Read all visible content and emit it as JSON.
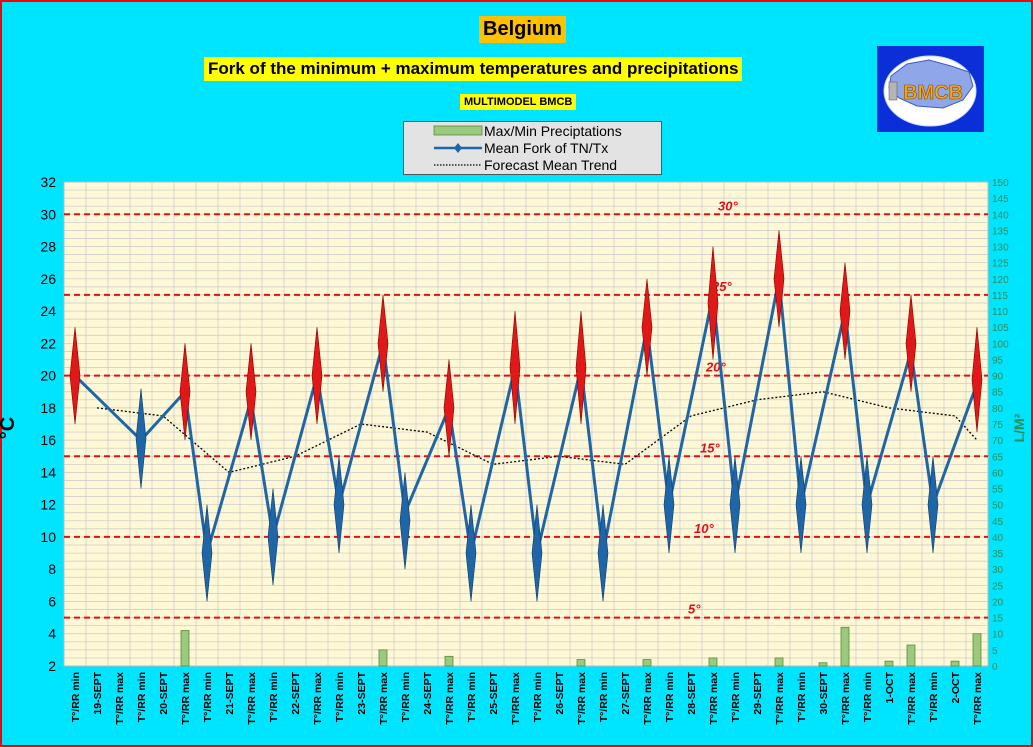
{
  "title": "Belgium",
  "subtitle": "Fork of the minimum + maximum temperatures and precipitations",
  "model_label": "MULTIMODEL BMCB",
  "logo_text": "BMCB",
  "legend": {
    "precip": "Max/Min Preciptations",
    "mean": "Mean Fork of TN/Tx",
    "trend": "Forecast Mean Trend"
  },
  "colors": {
    "border": "#ff0000",
    "background": "#00e5ff",
    "plot_bg": "#fff8d6",
    "mean_line": "#1f66a8",
    "trend_line": "#000000",
    "precip_bar": "#9bc97d",
    "ref_line": "#e0101a",
    "y2_label": "#2e8b57"
  },
  "chart_data": {
    "type": "line",
    "xlabel": "",
    "ylabel": "°C",
    "y2label": "L/M²",
    "ylim": [
      2,
      32
    ],
    "y_ticks": [
      2,
      4,
      6,
      8,
      10,
      12,
      14,
      16,
      18,
      20,
      22,
      24,
      26,
      28,
      30,
      32
    ],
    "y2lim": [
      0,
      150
    ],
    "y2_ticks": [
      0,
      5,
      10,
      15,
      20,
      25,
      30,
      35,
      40,
      45,
      50,
      55,
      60,
      65,
      70,
      75,
      80,
      85,
      90,
      95,
      100,
      105,
      110,
      115,
      120,
      125,
      130,
      135,
      140,
      145,
      150
    ],
    "grid": true,
    "legend_position": "top-center",
    "categories": [
      "T°/RR min",
      "19-SEPT",
      "T°/RR max",
      "T°/RR min",
      "20-SEPT",
      "T°/RR max",
      "T°/RR min",
      "21-SEPT",
      "T°/RR max",
      "T°/RR min",
      "22-SEPT",
      "T°/RR max",
      "T°/RR min",
      "23-SEPT",
      "T°/RR max",
      "T°/RR min",
      "24-SEPT",
      "T°/RR max",
      "T°/RR min",
      "25-SEPT",
      "T°/RR max",
      "T°/RR min",
      "26-SEPT",
      "T°/RR max",
      "T°/RR min",
      "27-SEPT",
      "T°/RR max",
      "T°/RR min",
      "28-SEPT",
      "T°/RR max",
      "T°/RR min",
      "29-SEPT",
      "T°/RR max",
      "T°/RR min",
      "30-SEPT",
      "T°/RR max",
      "T°/RR min",
      "1-OCT",
      "T°/RR max",
      "T°/RR min",
      "2-OCT",
      "T°/RR max"
    ],
    "series": [
      {
        "name": "Mean Fork of TN/Tx",
        "type": "line",
        "points": [
          {
            "i": 0,
            "v": 20
          },
          {
            "i": 3,
            "v": 16
          },
          {
            "i": 5,
            "v": 19
          },
          {
            "i": 6,
            "v": 9
          },
          {
            "i": 8,
            "v": 18.5
          },
          {
            "i": 9,
            "v": 10
          },
          {
            "i": 11,
            "v": 20
          },
          {
            "i": 12,
            "v": 12
          },
          {
            "i": 14,
            "v": 22
          },
          {
            "i": 15,
            "v": 11.5
          },
          {
            "i": 17,
            "v": 18
          },
          {
            "i": 18,
            "v": 9
          },
          {
            "i": 20,
            "v": 20.5
          },
          {
            "i": 21,
            "v": 9
          },
          {
            "i": 23,
            "v": 20.5
          },
          {
            "i": 24,
            "v": 9
          },
          {
            "i": 26,
            "v": 23
          },
          {
            "i": 27,
            "v": 12
          },
          {
            "i": 29,
            "v": 25
          },
          {
            "i": 30,
            "v": 12
          },
          {
            "i": 32,
            "v": 26
          },
          {
            "i": 33,
            "v": 12
          },
          {
            "i": 35,
            "v": 24
          },
          {
            "i": 36,
            "v": 12
          },
          {
            "i": 38,
            "v": 21.5
          },
          {
            "i": 39,
            "v": 12
          },
          {
            "i": 41,
            "v": 19.5
          }
        ]
      },
      {
        "name": "Forecast Mean Trend",
        "type": "line",
        "points": [
          {
            "i": 1,
            "v": 18
          },
          {
            "i": 4,
            "v": 17.5
          },
          {
            "i": 7,
            "v": 14
          },
          {
            "i": 10,
            "v": 15
          },
          {
            "i": 13,
            "v": 17
          },
          {
            "i": 16,
            "v": 16.5
          },
          {
            "i": 19,
            "v": 14.5
          },
          {
            "i": 22,
            "v": 15
          },
          {
            "i": 25,
            "v": 14.5
          },
          {
            "i": 28,
            "v": 17.5
          },
          {
            "i": 31,
            "v": 18.5
          },
          {
            "i": 34,
            "v": 19
          },
          {
            "i": 37,
            "v": 18
          },
          {
            "i": 40,
            "v": 17.5
          },
          {
            "i": 41,
            "v": 16
          }
        ]
      },
      {
        "name": "Max/Min Preciptations",
        "type": "bar",
        "axis": "y2",
        "points": [
          {
            "i": 5,
            "v": 11
          },
          {
            "i": 14,
            "v": 5
          },
          {
            "i": 17,
            "v": 3
          },
          {
            "i": 23,
            "v": 2
          },
          {
            "i": 26,
            "v": 2
          },
          {
            "i": 29,
            "v": 2.5
          },
          {
            "i": 32,
            "v": 2.5
          },
          {
            "i": 34,
            "v": 1
          },
          {
            "i": 35,
            "v": 12
          },
          {
            "i": 37,
            "v": 1.5
          },
          {
            "i": 38,
            "v": 6.5
          },
          {
            "i": 40,
            "v": 1.5
          },
          {
            "i": 41,
            "v": 10
          }
        ]
      }
    ],
    "fork_spikes": [
      {
        "i": 0,
        "low": 17,
        "high": 23
      },
      {
        "i": 3,
        "low": 13,
        "high": 19.2
      },
      {
        "i": 5,
        "low": 16,
        "high": 22
      },
      {
        "i": 6,
        "low": 6,
        "high": 12
      },
      {
        "i": 8,
        "low": 16,
        "high": 22
      },
      {
        "i": 9,
        "low": 7,
        "high": 13
      },
      {
        "i": 11,
        "low": 17,
        "high": 23
      },
      {
        "i": 12,
        "low": 9,
        "high": 15
      },
      {
        "i": 14,
        "low": 19,
        "high": 25
      },
      {
        "i": 15,
        "low": 8,
        "high": 14
      },
      {
        "i": 17,
        "low": 15,
        "high": 21
      },
      {
        "i": 18,
        "low": 6,
        "high": 12
      },
      {
        "i": 20,
        "low": 17,
        "high": 24
      },
      {
        "i": 21,
        "low": 6,
        "high": 12
      },
      {
        "i": 23,
        "low": 17,
        "high": 24
      },
      {
        "i": 24,
        "low": 6,
        "high": 12
      },
      {
        "i": 26,
        "low": 20,
        "high": 26
      },
      {
        "i": 27,
        "low": 9,
        "high": 15
      },
      {
        "i": 29,
        "low": 21,
        "high": 28
      },
      {
        "i": 30,
        "low": 9,
        "high": 15
      },
      {
        "i": 32,
        "low": 23,
        "high": 29
      },
      {
        "i": 33,
        "low": 9,
        "high": 15
      },
      {
        "i": 35,
        "low": 21,
        "high": 27
      },
      {
        "i": 36,
        "low": 9,
        "high": 15
      },
      {
        "i": 38,
        "low": 19,
        "high": 25
      },
      {
        "i": 39,
        "low": 9,
        "high": 15
      },
      {
        "i": 41,
        "low": 16.5,
        "high": 23
      }
    ],
    "reference_lines": [
      {
        "label": "30°",
        "value": 30
      },
      {
        "label": "25°",
        "value": 25
      },
      {
        "label": "20°",
        "value": 20
      },
      {
        "label": "15°",
        "value": 15
      },
      {
        "label": "10°",
        "value": 10
      },
      {
        "label": "5°",
        "value": 5
      }
    ]
  }
}
